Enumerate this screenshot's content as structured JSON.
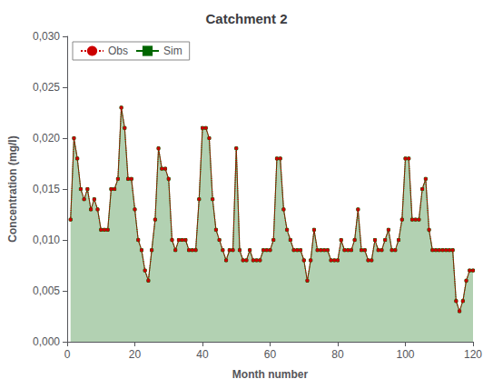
{
  "chart_data": {
    "type": "line",
    "title": "Catchment 2",
    "xlabel": "Month number",
    "ylabel": "Concentration (mg/l)",
    "xlim": [
      0,
      120
    ],
    "xticks": [
      0,
      20,
      40,
      60,
      80,
      100,
      120
    ],
    "ylim": [
      0.0,
      0.03
    ],
    "yticks": [
      {
        "value": 0.0,
        "label": "0,000"
      },
      {
        "value": 0.005,
        "label": "0,005"
      },
      {
        "value": 0.01,
        "label": "0,010"
      },
      {
        "value": 0.015,
        "label": "0,015"
      },
      {
        "value": 0.02,
        "label": "0,020"
      },
      {
        "value": 0.025,
        "label": "0,025"
      },
      {
        "value": 0.03,
        "label": "0,030"
      }
    ],
    "grid": false,
    "legend": "upper left",
    "x": [
      1,
      2,
      3,
      4,
      5,
      6,
      7,
      8,
      9,
      10,
      11,
      12,
      13,
      14,
      15,
      16,
      17,
      18,
      19,
      20,
      21,
      22,
      23,
      24,
      25,
      26,
      27,
      28,
      29,
      30,
      31,
      32,
      33,
      34,
      35,
      36,
      37,
      38,
      39,
      40,
      41,
      42,
      43,
      44,
      45,
      46,
      47,
      48,
      49,
      50,
      51,
      52,
      53,
      54,
      55,
      56,
      57,
      58,
      59,
      60,
      61,
      62,
      63,
      64,
      65,
      66,
      67,
      68,
      69,
      70,
      71,
      72,
      73,
      74,
      75,
      76,
      77,
      78,
      79,
      80,
      81,
      82,
      83,
      84,
      85,
      86,
      87,
      88,
      89,
      90,
      91,
      92,
      93,
      94,
      95,
      96,
      97,
      98,
      99,
      100,
      101,
      102,
      103,
      104,
      105,
      106,
      107,
      108,
      109,
      110,
      111,
      112,
      113,
      114,
      115,
      116,
      117,
      118,
      119,
      120
    ],
    "series": [
      {
        "name": "Sim",
        "type": "area",
        "color": "#006600",
        "marker": "square",
        "line_style": "solid",
        "values": [
          0.012,
          0.02,
          0.018,
          0.015,
          0.014,
          0.015,
          0.013,
          0.014,
          0.013,
          0.011,
          0.011,
          0.011,
          0.015,
          0.015,
          0.016,
          0.023,
          0.021,
          0.016,
          0.016,
          0.013,
          0.01,
          0.009,
          0.007,
          0.006,
          0.009,
          0.012,
          0.019,
          0.017,
          0.017,
          0.016,
          0.01,
          0.009,
          0.01,
          0.01,
          0.01,
          0.009,
          0.009,
          0.009,
          0.014,
          0.021,
          0.021,
          0.02,
          0.014,
          0.011,
          0.01,
          0.009,
          0.008,
          0.009,
          0.009,
          0.019,
          0.009,
          0.008,
          0.008,
          0.009,
          0.008,
          0.008,
          0.008,
          0.009,
          0.009,
          0.009,
          0.01,
          0.018,
          0.018,
          0.013,
          0.011,
          0.01,
          0.009,
          0.009,
          0.009,
          0.008,
          0.006,
          0.008,
          0.011,
          0.009,
          0.009,
          0.009,
          0.009,
          0.008,
          0.008,
          0.008,
          0.01,
          0.009,
          0.009,
          0.009,
          0.01,
          0.013,
          0.009,
          0.009,
          0.008,
          0.008,
          0.01,
          0.009,
          0.009,
          0.01,
          0.011,
          0.009,
          0.009,
          0.01,
          0.012,
          0.018,
          0.018,
          0.012,
          0.012,
          0.012,
          0.015,
          0.016,
          0.011,
          0.009,
          0.009,
          0.009,
          0.009,
          0.009,
          0.009,
          0.009,
          0.004,
          0.003,
          0.004,
          0.006,
          0.007,
          0.007
        ]
      },
      {
        "name": "Obs",
        "type": "line",
        "color": "#cc0000",
        "marker": "circle",
        "line_style": "dotted",
        "values": [
          0.012,
          0.02,
          0.018,
          0.015,
          0.014,
          0.015,
          0.013,
          0.014,
          0.013,
          0.011,
          0.011,
          0.011,
          0.015,
          0.015,
          0.016,
          0.023,
          0.021,
          0.016,
          0.016,
          0.013,
          0.01,
          0.009,
          0.007,
          0.006,
          0.009,
          0.012,
          0.019,
          0.017,
          0.017,
          0.016,
          0.01,
          0.009,
          0.01,
          0.01,
          0.01,
          0.009,
          0.009,
          0.009,
          0.014,
          0.021,
          0.021,
          0.02,
          0.014,
          0.011,
          0.01,
          0.009,
          0.008,
          0.009,
          0.009,
          0.019,
          0.009,
          0.008,
          0.008,
          0.009,
          0.008,
          0.008,
          0.008,
          0.009,
          0.009,
          0.009,
          0.01,
          0.018,
          0.018,
          0.013,
          0.011,
          0.01,
          0.009,
          0.009,
          0.009,
          0.008,
          0.006,
          0.008,
          0.011,
          0.009,
          0.009,
          0.009,
          0.009,
          0.008,
          0.008,
          0.008,
          0.01,
          0.009,
          0.009,
          0.009,
          0.01,
          0.013,
          0.009,
          0.009,
          0.008,
          0.008,
          0.01,
          0.009,
          0.009,
          0.01,
          0.011,
          0.009,
          0.009,
          0.01,
          0.012,
          0.018,
          0.018,
          0.012,
          0.012,
          0.012,
          0.015,
          0.016,
          0.011,
          0.009,
          0.009,
          0.009,
          0.009,
          0.009,
          0.009,
          0.009,
          0.004,
          0.003,
          0.004,
          0.006,
          0.007,
          0.007
        ]
      }
    ]
  }
}
